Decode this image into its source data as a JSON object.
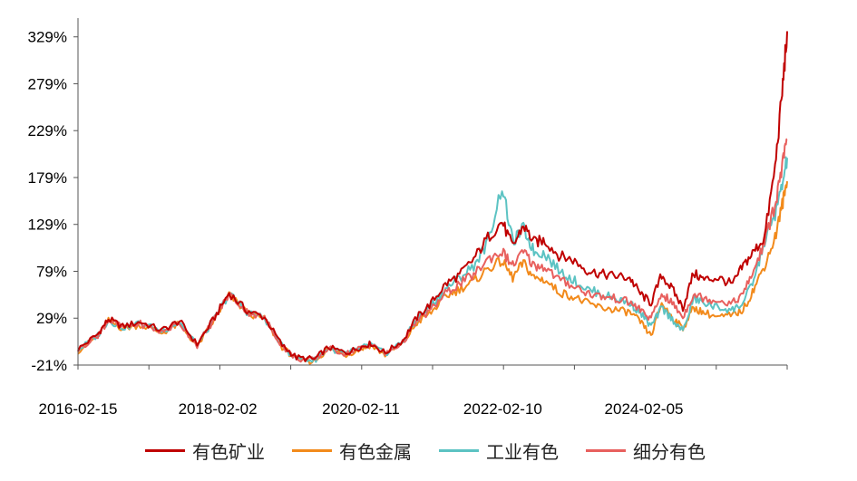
{
  "chart_data": {
    "type": "line",
    "title": "",
    "xlabel": "",
    "ylabel": "",
    "ylim": [
      -21,
      349
    ],
    "y_ticks": [
      "329%",
      "279%",
      "229%",
      "179%",
      "129%",
      "79%",
      "29%",
      "-21%"
    ],
    "y_tick_values": [
      329,
      279,
      229,
      179,
      129,
      79,
      29,
      -21
    ],
    "x_ticks": [
      "2016-02-15",
      "2018-02-02",
      "2020-02-11",
      "2022-02-10",
      "2024-02-05"
    ],
    "x_tick_values": [
      2016.12,
      2018.09,
      2020.11,
      2022.11,
      2024.1
    ],
    "xlim": [
      2016.12,
      2026.12
    ],
    "grid": false,
    "legend_position": "bottom",
    "series": [
      {
        "name": "有色矿业",
        "color": "#C00000",
        "x": [
          2016.12,
          2016.4,
          2016.55,
          2016.75,
          2017.0,
          2017.3,
          2017.55,
          2017.8,
          2018.05,
          2018.25,
          2018.5,
          2018.75,
          2019.0,
          2019.2,
          2019.45,
          2019.65,
          2019.9,
          2020.1,
          2020.25,
          2020.45,
          2020.7,
          2020.9,
          2021.1,
          2021.3,
          2021.5,
          2021.7,
          2021.9,
          2022.1,
          2022.25,
          2022.4,
          2022.55,
          2022.7,
          2022.9,
          2023.1,
          2023.3,
          2023.5,
          2023.7,
          2023.9,
          2024.05,
          2024.2,
          2024.35,
          2024.5,
          2024.65,
          2024.8,
          2024.95,
          2025.15,
          2025.35,
          2025.5,
          2025.65,
          2025.8,
          2025.95,
          2026.05,
          2026.12
        ],
        "y": [
          -4,
          12,
          28,
          20,
          25,
          16,
          26,
          1,
          30,
          56,
          37,
          30,
          0,
          -13,
          -15,
          -2,
          -8,
          -2,
          2,
          -8,
          5,
          30,
          45,
          65,
          75,
          92,
          115,
          132,
          105,
          128,
          110,
          112,
          96,
          91,
          80,
          76,
          74,
          72,
          55,
          45,
          75,
          60,
          40,
          77,
          70,
          72,
          65,
          85,
          100,
          115,
          190,
          270,
          335
        ]
      },
      {
        "name": "有色金属",
        "color": "#F28A1B",
        "x": [
          2016.12,
          2016.4,
          2016.55,
          2016.75,
          2017.0,
          2017.3,
          2017.55,
          2017.8,
          2018.05,
          2018.25,
          2018.5,
          2018.75,
          2019.0,
          2019.2,
          2019.45,
          2019.65,
          2019.9,
          2020.1,
          2020.25,
          2020.45,
          2020.7,
          2020.9,
          2021.1,
          2021.3,
          2021.5,
          2021.7,
          2021.9,
          2022.1,
          2022.25,
          2022.4,
          2022.55,
          2022.7,
          2022.9,
          2023.1,
          2023.3,
          2023.5,
          2023.7,
          2023.9,
          2024.05,
          2024.2,
          2024.35,
          2024.5,
          2024.65,
          2024.8,
          2024.95,
          2025.15,
          2025.35,
          2025.5,
          2025.65,
          2025.8,
          2025.95,
          2026.05,
          2026.12
        ],
        "y": [
          -6,
          10,
          26,
          18,
          22,
          13,
          23,
          -1,
          28,
          54,
          35,
          28,
          -2,
          -15,
          -17,
          -4,
          -10,
          -4,
          0,
          -10,
          2,
          24,
          35,
          52,
          60,
          68,
          82,
          90,
          72,
          88,
          72,
          70,
          57,
          52,
          45,
          40,
          38,
          35,
          25,
          10,
          45,
          30,
          18,
          40,
          35,
          30,
          32,
          38,
          60,
          85,
          115,
          150,
          175
        ]
      },
      {
        "name": "工业有色",
        "color": "#5CC3C3",
        "x": [
          2016.12,
          2016.4,
          2016.55,
          2016.75,
          2017.0,
          2017.3,
          2017.55,
          2017.8,
          2018.05,
          2018.25,
          2018.5,
          2018.75,
          2019.0,
          2019.2,
          2019.45,
          2019.65,
          2019.9,
          2020.1,
          2020.25,
          2020.45,
          2020.7,
          2020.9,
          2021.1,
          2021.3,
          2021.5,
          2021.7,
          2021.9,
          2022.1,
          2022.25,
          2022.4,
          2022.55,
          2022.7,
          2022.9,
          2023.1,
          2023.3,
          2023.5,
          2023.7,
          2023.9,
          2024.05,
          2024.2,
          2024.35,
          2024.5,
          2024.65,
          2024.8,
          2024.95,
          2025.15,
          2025.35,
          2025.5,
          2025.65,
          2025.8,
          2025.95,
          2026.05,
          2026.12
        ],
        "y": [
          -5,
          11,
          27,
          19,
          24,
          15,
          25,
          0,
          29,
          55,
          36,
          29,
          -1,
          -14,
          -16,
          -3,
          -9,
          -3,
          1,
          -9,
          4,
          28,
          42,
          60,
          72,
          85,
          110,
          170,
          110,
          125,
          100,
          98,
          80,
          70,
          60,
          55,
          50,
          45,
          35,
          20,
          40,
          28,
          15,
          50,
          45,
          40,
          38,
          45,
          70,
          110,
          140,
          170,
          200
        ]
      },
      {
        "name": "细分有色",
        "color": "#E8605E",
        "x": [
          2016.12,
          2016.4,
          2016.55,
          2016.75,
          2017.0,
          2017.3,
          2017.55,
          2017.8,
          2018.05,
          2018.25,
          2018.5,
          2018.75,
          2019.0,
          2019.2,
          2019.45,
          2019.65,
          2019.9,
          2020.1,
          2020.25,
          2020.45,
          2020.7,
          2020.9,
          2021.1,
          2021.3,
          2021.5,
          2021.7,
          2021.9,
          2022.1,
          2022.25,
          2022.4,
          2022.55,
          2022.7,
          2022.9,
          2023.1,
          2023.3,
          2023.5,
          2023.7,
          2023.9,
          2024.05,
          2024.2,
          2024.35,
          2024.5,
          2024.65,
          2024.8,
          2024.95,
          2025.15,
          2025.35,
          2025.5,
          2025.65,
          2025.8,
          2025.95,
          2026.05,
          2026.12
        ],
        "y": [
          -5,
          11,
          27,
          19,
          23,
          14,
          24,
          0,
          29,
          55,
          36,
          29,
          -1,
          -14,
          -16,
          -3,
          -9,
          -3,
          1,
          -9,
          3,
          26,
          38,
          55,
          66,
          75,
          92,
          100,
          85,
          100,
          85,
          84,
          70,
          64,
          56,
          52,
          50,
          46,
          38,
          28,
          55,
          45,
          30,
          55,
          50,
          48,
          45,
          55,
          80,
          110,
          150,
          190,
          220
        ]
      }
    ]
  }
}
